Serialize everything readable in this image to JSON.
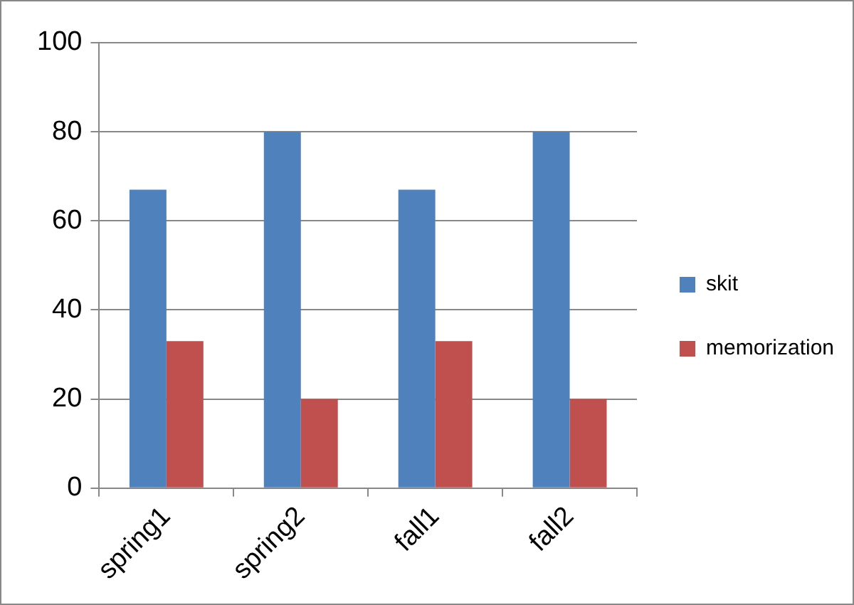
{
  "chart_data": {
    "type": "bar",
    "categories": [
      "spring1",
      "spring2",
      "fall1",
      "fall2"
    ],
    "series": [
      {
        "name": "skit",
        "color": "#4f81bd",
        "values": [
          67,
          80,
          67,
          80
        ]
      },
      {
        "name": "memorization",
        "color": "#c0504d",
        "values": [
          33,
          20,
          33,
          20
        ]
      }
    ],
    "ylim": [
      0,
      100
    ],
    "yticks": [
      0,
      20,
      40,
      60,
      80,
      100
    ],
    "grid": "y",
    "legend": "right"
  }
}
